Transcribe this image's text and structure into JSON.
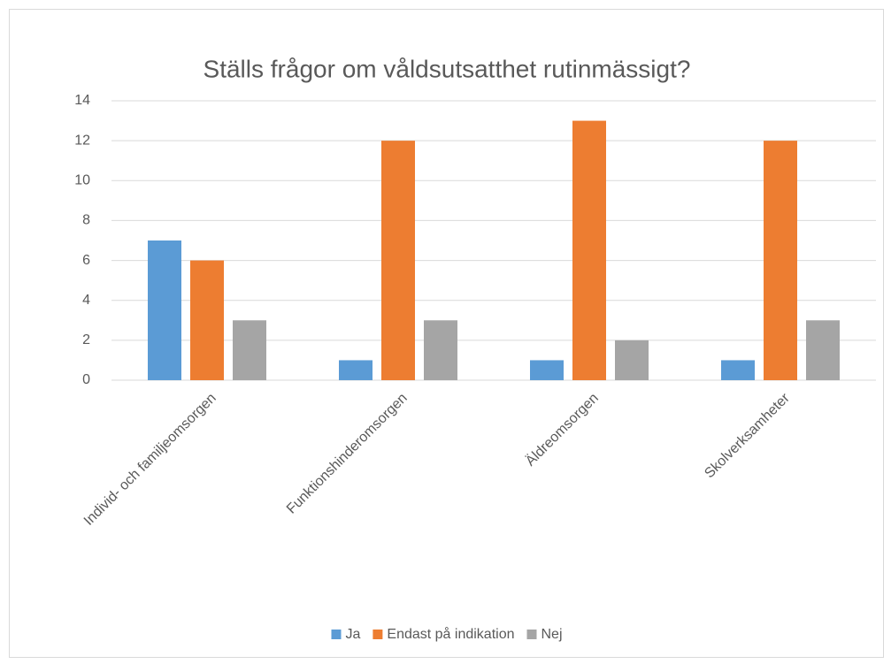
{
  "chart_data": {
    "type": "bar",
    "title": "Ställs frågor om våldsutsatthet rutinmässigt?",
    "categories": [
      "Individ- och familjeomsorgen",
      "Funktionshinderomsorgen",
      "Äldreomsorgen",
      "Skolverksamheter"
    ],
    "series": [
      {
        "name": "Ja",
        "color": "#5b9bd5",
        "values": [
          7,
          1,
          1,
          1
        ]
      },
      {
        "name": "Endast på indikation",
        "color": "#ed7d31",
        "values": [
          6,
          12,
          13,
          12
        ]
      },
      {
        "name": "Nej",
        "color": "#a5a5a5",
        "values": [
          3,
          3,
          2,
          3
        ]
      }
    ],
    "ylim": [
      0,
      14
    ],
    "yticks": [
      0,
      2,
      4,
      6,
      8,
      10,
      12,
      14
    ],
    "grid": true,
    "legend": "bottom"
  }
}
